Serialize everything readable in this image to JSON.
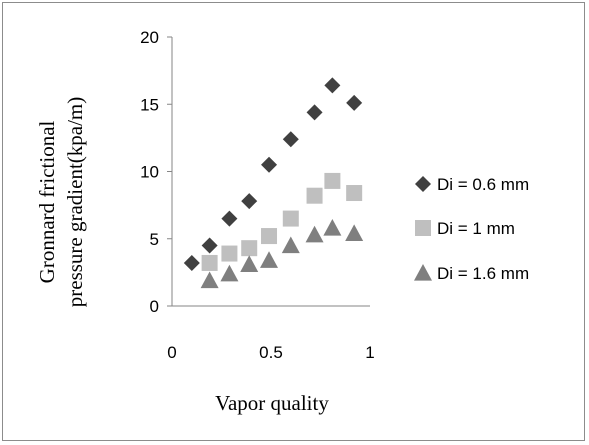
{
  "chart_data": {
    "type": "scatter",
    "title": "",
    "xlabel": "Vapor quality",
    "ylabel_lines": [
      "Gronnard  frictional",
      "pressure gradient(kpa/m)"
    ],
    "xlim": [
      0,
      1
    ],
    "ylim": [
      0,
      20
    ],
    "x_ticks": [
      "0",
      "0.5",
      "1"
    ],
    "x_tick_values": [
      0,
      0.5,
      1
    ],
    "y_ticks": [
      "0",
      "5",
      "10",
      "15",
      "20"
    ],
    "y_tick_values": [
      0,
      5,
      10,
      15,
      20
    ],
    "grid": false,
    "legend_position": "right",
    "series": [
      {
        "name": "Di = 0.6 mm",
        "marker": "diamond",
        "color": "#404040",
        "points": [
          {
            "x": 0.1,
            "y": 3.2
          },
          {
            "x": 0.19,
            "y": 4.5
          },
          {
            "x": 0.29,
            "y": 6.5
          },
          {
            "x": 0.39,
            "y": 7.8
          },
          {
            "x": 0.49,
            "y": 10.5
          },
          {
            "x": 0.6,
            "y": 12.4
          },
          {
            "x": 0.72,
            "y": 14.4
          },
          {
            "x": 0.81,
            "y": 16.4
          },
          {
            "x": 0.92,
            "y": 15.1
          }
        ]
      },
      {
        "name": "Di = 1 mm",
        "marker": "square",
        "color": "#bfbfbf",
        "points": [
          {
            "x": 0.19,
            "y": 3.2
          },
          {
            "x": 0.29,
            "y": 3.9
          },
          {
            "x": 0.39,
            "y": 4.3
          },
          {
            "x": 0.49,
            "y": 5.2
          },
          {
            "x": 0.6,
            "y": 6.5
          },
          {
            "x": 0.72,
            "y": 8.2
          },
          {
            "x": 0.81,
            "y": 9.3
          },
          {
            "x": 0.92,
            "y": 8.4
          }
        ]
      },
      {
        "name": "Di = 1.6 mm",
        "marker": "triangle",
        "color": "#7f7f7f",
        "points": [
          {
            "x": 0.19,
            "y": 1.9
          },
          {
            "x": 0.29,
            "y": 2.4
          },
          {
            "x": 0.39,
            "y": 3.1
          },
          {
            "x": 0.49,
            "y": 3.4
          },
          {
            "x": 0.6,
            "y": 4.5
          },
          {
            "x": 0.72,
            "y": 5.3
          },
          {
            "x": 0.81,
            "y": 5.8
          },
          {
            "x": 0.92,
            "y": 5.4
          }
        ]
      }
    ]
  }
}
